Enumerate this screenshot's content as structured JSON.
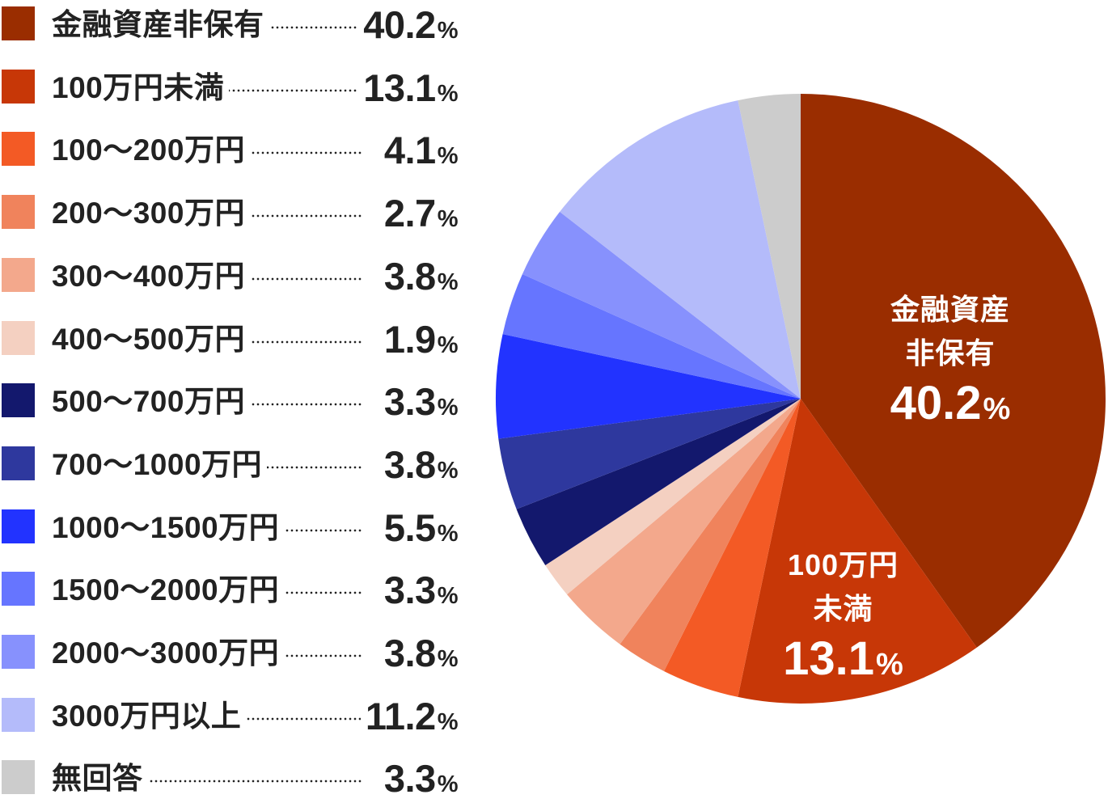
{
  "chart_data": {
    "type": "pie",
    "title": "",
    "start_angle": "12 o'clock, clockwise",
    "categories": [
      "金融資産非保有",
      "100万円未満",
      "100〜200万円",
      "200〜300万円",
      "300〜400万円",
      "400〜500万円",
      "500〜700万円",
      "700〜1000万円",
      "1000〜1500万円",
      "1500〜2000万円",
      "2000〜3000万円",
      "3000万円以上",
      "無回答"
    ],
    "values": [
      40.2,
      13.1,
      4.1,
      2.7,
      3.8,
      1.9,
      3.3,
      3.8,
      5.5,
      3.3,
      3.8,
      11.2,
      3.3
    ],
    "unit": "%",
    "legend_position": "left",
    "slices": [
      {
        "label": "金融資産非保有",
        "value": 40.2,
        "value_text": "40.2",
        "color": "#9a2d00"
      },
      {
        "label": "100万円未満",
        "value": 13.1,
        "value_text": "13.1",
        "color": "#c73707"
      },
      {
        "label": "100〜200万円",
        "value": 4.1,
        "value_text": "4.1",
        "color": "#f35a25"
      },
      {
        "label": "200〜300万円",
        "value": 2.7,
        "value_text": "2.7",
        "color": "#f0835c"
      },
      {
        "label": "300〜400万円",
        "value": 3.8,
        "value_text": "3.8",
        "color": "#f3a88c"
      },
      {
        "label": "400〜500万円",
        "value": 1.9,
        "value_text": "1.9",
        "color": "#f4d0c1"
      },
      {
        "label": "500〜700万円",
        "value": 3.3,
        "value_text": "3.3",
        "color": "#13186d"
      },
      {
        "label": "700〜1000万円",
        "value": 3.8,
        "value_text": "3.8",
        "color": "#2e389e"
      },
      {
        "label": "1000〜1500万円",
        "value": 5.5,
        "value_text": "5.5",
        "color": "#2233ff"
      },
      {
        "label": "1500〜2000万円",
        "value": 3.3,
        "value_text": "3.3",
        "color": "#6675ff"
      },
      {
        "label": "2000〜3000万円",
        "value": 3.8,
        "value_text": "3.8",
        "color": "#8791fd"
      },
      {
        "label": "3000万円以上",
        "value": 11.2,
        "value_text": "11.2",
        "color": "#b4bbfa"
      },
      {
        "label": "無回答",
        "value": 3.3,
        "value_text": "3.3",
        "color": "#cccccc"
      }
    ],
    "annotations": [
      {
        "lines": [
          "金融資産",
          "非保有"
        ],
        "value_text": "40.2",
        "pct": "%"
      },
      {
        "lines": [
          "100万円",
          "未満"
        ],
        "value_text": "13.1",
        "pct": "%"
      }
    ]
  },
  "legend": {
    "pct_symbol": "%"
  }
}
